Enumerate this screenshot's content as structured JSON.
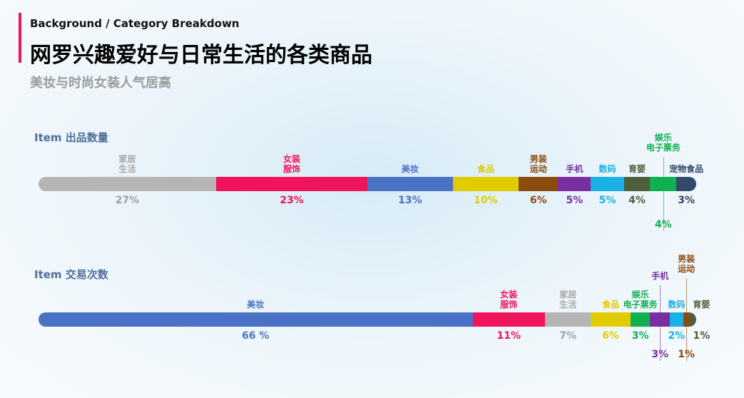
{
  "header": {
    "eyebrow": "Background / Category Breakdown",
    "title": "网罗兴趣爱好与日常生活的各类商品",
    "subtitle": "美妆与时尚女装人气居高"
  },
  "chart_data": [
    {
      "type": "stacked-bar",
      "title": "Item 出品数量",
      "categories": [
        "家居\n生活",
        "女装\n服饰",
        "美妆",
        "食品",
        "男装\n运动",
        "手机",
        "数码",
        "育婴",
        "娱乐\n电子票务",
        "宠物食品"
      ],
      "values": [
        27,
        23,
        13,
        10,
        6,
        5,
        5,
        4,
        4,
        3
      ],
      "value_labels": [
        "27%",
        "23%",
        "13%",
        "10%",
        "6%",
        "5%",
        "5%",
        "4%",
        "4%",
        "3%"
      ],
      "colors": [
        "#b5b5b5",
        "#f0145a",
        "#4a72c4",
        "#e0cc00",
        "#8b4a0e",
        "#7a2fa0",
        "#1ab0e8",
        "#4f5e3c",
        "#10b050",
        "#34486a"
      ],
      "xlim": [
        0,
        100
      ]
    },
    {
      "type": "stacked-bar",
      "title": "Item 交易次数",
      "categories": [
        "美妆",
        "女装\n服饰",
        "家居\n生活",
        "食品",
        "娱乐\n电子票务",
        "手机",
        "数码",
        "男装\n运动",
        "育婴"
      ],
      "values": [
        66,
        11,
        7,
        6,
        3,
        3,
        2,
        1,
        1
      ],
      "value_labels": [
        "66 %",
        "11%",
        "7%",
        "6%",
        "3%",
        "3%",
        "2%",
        "1%",
        "1%"
      ],
      "colors": [
        "#4a72c4",
        "#f0145a",
        "#b5b5b5",
        "#e0cc00",
        "#10b050",
        "#7a2fa0",
        "#1ab0e8",
        "#8b4a0e",
        "#4f5e3c"
      ],
      "xlim": [
        0,
        100
      ]
    }
  ]
}
